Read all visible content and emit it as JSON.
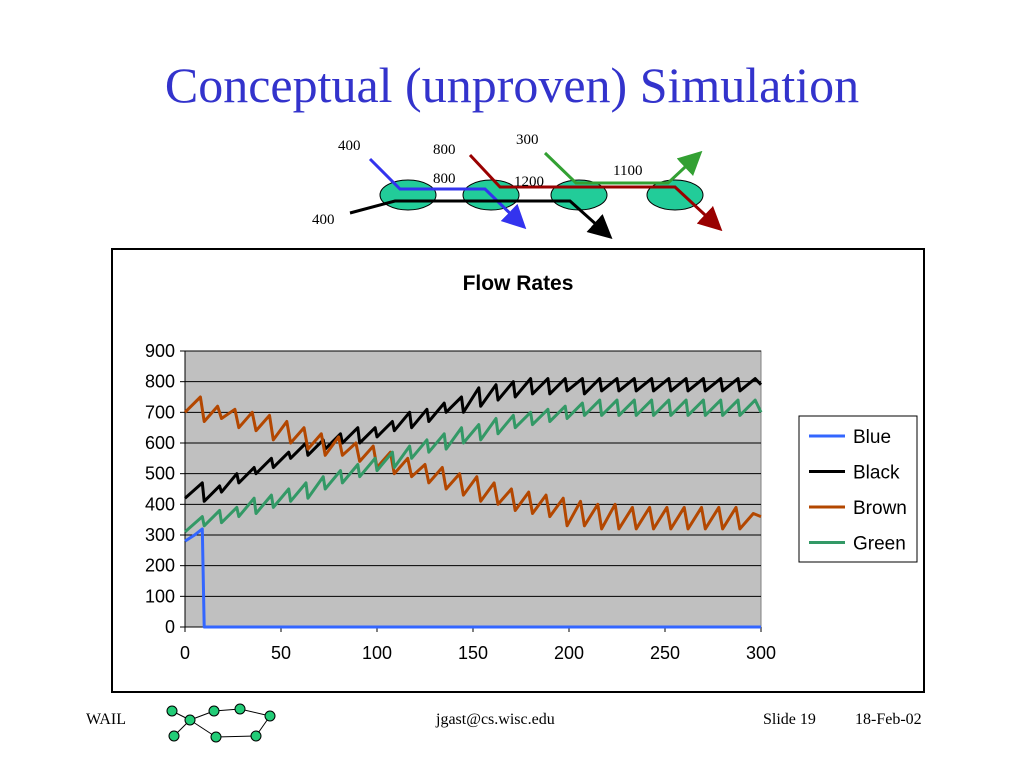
{
  "slide": {
    "title": "Conceptual (unproven) Simulation",
    "footer_left": "WAIL",
    "footer_center": "jgast@cs.wisc.edu",
    "footer_slide": "Slide 19",
    "footer_date": "18-Feb-02"
  },
  "diagram": {
    "labels": [
      "400",
      "400",
      "800",
      "800",
      "1200",
      "300",
      "1100"
    ],
    "colors": {
      "blue": "#3333ee",
      "black": "#000000",
      "brown": "#990000",
      "green": "#33a033",
      "node": "#22cc99"
    }
  },
  "chart_data": {
    "type": "line",
    "title": "Flow Rates",
    "xlabel": "",
    "ylabel": "",
    "xlim": [
      0,
      300
    ],
    "ylim": [
      0,
      900
    ],
    "xticks": [
      0,
      50,
      100,
      150,
      200,
      250,
      300
    ],
    "yticks": [
      0,
      100,
      200,
      300,
      400,
      500,
      600,
      700,
      800,
      900
    ],
    "grid": true,
    "plot_background": "#c0c0c0",
    "legend": "right",
    "series": [
      {
        "name": "Blue",
        "color": "#3366ff",
        "x": [
          0,
          5,
          9,
          10,
          300
        ],
        "y": [
          280,
          300,
          320,
          0,
          0
        ]
      },
      {
        "name": "Black",
        "color": "#000000",
        "x": [
          0,
          9,
          10,
          18,
          19,
          27,
          28,
          36,
          37,
          45,
          46,
          54,
          55,
          63,
          64,
          72,
          73,
          81,
          82,
          90,
          91,
          99,
          100,
          108,
          109,
          117,
          118,
          126,
          127,
          135,
          136,
          144,
          145,
          153,
          154,
          162,
          163,
          171,
          172,
          180,
          181,
          189,
          190,
          198,
          199,
          207,
          208,
          216,
          217,
          225,
          226,
          234,
          235,
          243,
          244,
          252,
          253,
          261,
          262,
          270,
          271,
          279,
          280,
          288,
          289,
          297,
          300
        ],
        "y": [
          420,
          470,
          410,
          460,
          440,
          500,
          470,
          520,
          500,
          550,
          520,
          570,
          550,
          600,
          560,
          610,
          580,
          630,
          600,
          650,
          600,
          650,
          620,
          670,
          640,
          700,
          650,
          710,
          670,
          730,
          700,
          750,
          700,
          780,
          720,
          790,
          740,
          800,
          750,
          810,
          760,
          810,
          760,
          810,
          770,
          810,
          760,
          810,
          770,
          810,
          770,
          810,
          770,
          810,
          770,
          810,
          770,
          810,
          770,
          810,
          770,
          810,
          770,
          810,
          770,
          810,
          790
        ]
      },
      {
        "name": "Brown",
        "color": "#b34700",
        "x": [
          0,
          8,
          10,
          17,
          19,
          26,
          28,
          35,
          37,
          44,
          46,
          53,
          55,
          62,
          64,
          71,
          73,
          80,
          82,
          89,
          91,
          98,
          100,
          107,
          109,
          116,
          118,
          125,
          127,
          134,
          136,
          143,
          145,
          152,
          154,
          161,
          163,
          170,
          172,
          179,
          181,
          188,
          190,
          197,
          199,
          206,
          208,
          215,
          217,
          224,
          226,
          233,
          235,
          242,
          244,
          251,
          253,
          260,
          262,
          269,
          271,
          278,
          280,
          287,
          289,
          296,
          300
        ],
        "y": [
          700,
          750,
          670,
          720,
          680,
          710,
          650,
          700,
          640,
          690,
          610,
          670,
          600,
          650,
          580,
          630,
          560,
          620,
          560,
          600,
          540,
          590,
          520,
          570,
          500,
          550,
          490,
          530,
          470,
          520,
          450,
          500,
          430,
          490,
          410,
          470,
          400,
          450,
          380,
          440,
          370,
          430,
          360,
          420,
          330,
          410,
          330,
          400,
          320,
          400,
          320,
          390,
          320,
          390,
          320,
          390,
          320,
          390,
          320,
          390,
          320,
          390,
          320,
          390,
          320,
          370,
          360
        ]
      },
      {
        "name": "Green",
        "color": "#339966",
        "x": [
          0,
          9,
          10,
          18,
          19,
          27,
          28,
          36,
          37,
          45,
          46,
          54,
          55,
          63,
          64,
          72,
          73,
          81,
          82,
          90,
          91,
          99,
          100,
          108,
          109,
          117,
          118,
          126,
          127,
          135,
          136,
          144,
          145,
          153,
          154,
          162,
          163,
          171,
          172,
          180,
          181,
          189,
          190,
          198,
          199,
          207,
          208,
          216,
          217,
          225,
          226,
          234,
          235,
          243,
          244,
          252,
          253,
          261,
          262,
          270,
          271,
          279,
          280,
          288,
          289,
          297,
          300
        ],
        "y": [
          310,
          360,
          330,
          380,
          340,
          390,
          360,
          420,
          370,
          430,
          390,
          450,
          410,
          470,
          420,
          490,
          450,
          510,
          470,
          530,
          490,
          550,
          510,
          570,
          520,
          590,
          550,
          610,
          570,
          630,
          580,
          650,
          600,
          660,
          610,
          680,
          630,
          690,
          650,
          700,
          660,
          710,
          670,
          720,
          680,
          730,
          690,
          740,
          690,
          740,
          690,
          740,
          690,
          740,
          690,
          740,
          690,
          740,
          690,
          740,
          690,
          740,
          690,
          740,
          690,
          740,
          700
        ]
      }
    ]
  }
}
